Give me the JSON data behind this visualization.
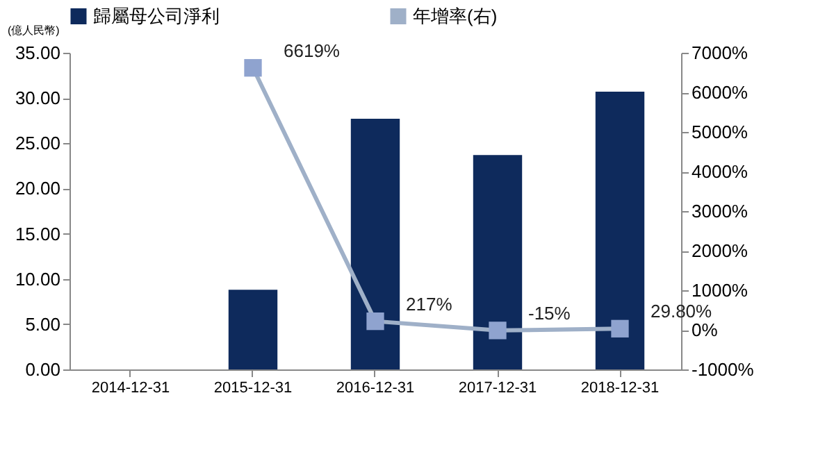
{
  "chart_data": {
    "type": "bar",
    "categories": [
      "2014-12-31",
      "2015-12-31",
      "2016-12-31",
      "2017-12-31",
      "2018-12-31"
    ],
    "ylabel": "(億人民幣)",
    "series": [
      {
        "name": "歸屬母公司淨利",
        "color": "#0e2a5c",
        "values": [
          null,
          8.8,
          27.7,
          23.7,
          30.7
        ]
      },
      {
        "name": "年增率(右)",
        "type": "line",
        "axis": "y2",
        "color": "#9fb0c8",
        "marker": "square",
        "values": [
          null,
          6619,
          217,
          -15,
          29.8
        ],
        "value_labels": [
          null,
          "6619%",
          "217%",
          "-15%",
          "29.80%"
        ]
      }
    ],
    "ylim": [
      0,
      35
    ],
    "yticks": [
      {
        "value": 0,
        "label": "0.00"
      },
      {
        "value": 5,
        "label": "5.00"
      },
      {
        "value": 10,
        "label": "10.00"
      },
      {
        "value": 15,
        "label": "15.00"
      },
      {
        "value": 20,
        "label": "20.00"
      },
      {
        "value": 25,
        "label": "25.00"
      },
      {
        "value": 30,
        "label": "30.00"
      },
      {
        "value": 35,
        "label": "35.00"
      }
    ],
    "y2lim": [
      -1000,
      7000
    ],
    "y2ticks": [
      {
        "value": -1000,
        "label": "-1000%"
      },
      {
        "value": 0,
        "label": "0%"
      },
      {
        "value": 1000,
        "label": "1000%"
      },
      {
        "value": 2000,
        "label": "2000%"
      },
      {
        "value": 3000,
        "label": "3000%"
      },
      {
        "value": 4000,
        "label": "4000%"
      },
      {
        "value": 5000,
        "label": "5000%"
      },
      {
        "value": 6000,
        "label": "6000%"
      },
      {
        "value": 7000,
        "label": "7000%"
      }
    ],
    "legend": "top",
    "grid": false
  }
}
